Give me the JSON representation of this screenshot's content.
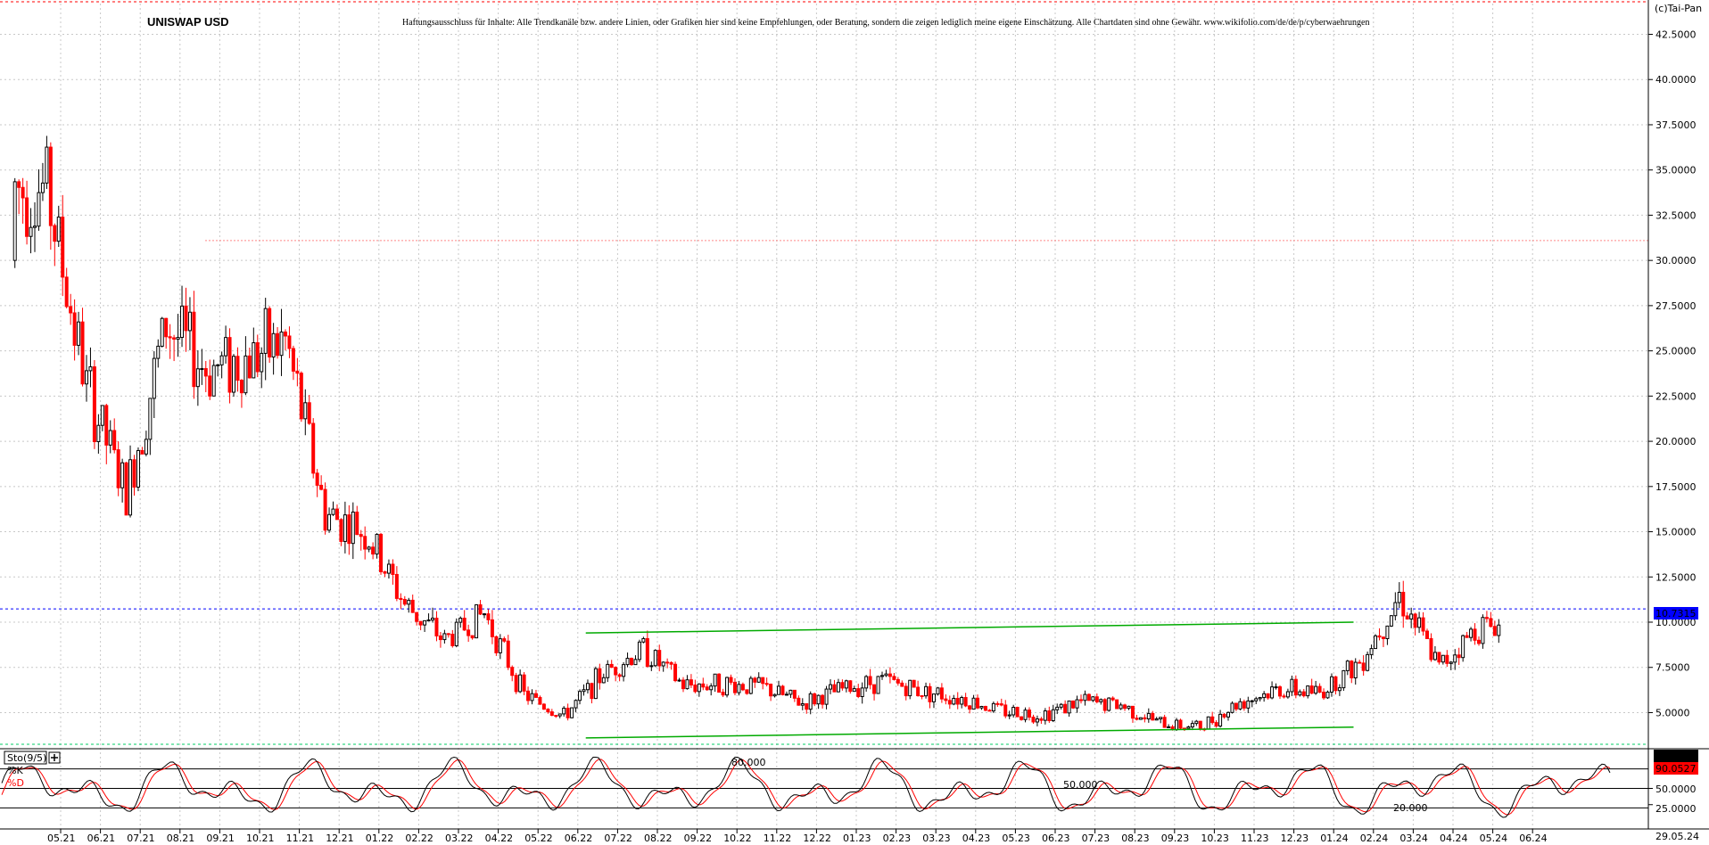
{
  "header": {
    "title": "UNISWAP USD",
    "disclaimer": "Haftungsausschluss für Inhalte: Alle Trendkanäle bzw. andere Linien, oder Grafiken hier sind keine Empfehlungen, oder Beratung, sondern die zeigen lediglich meine eigene Einschätzung. Alle Chartdaten sind ohne Gewähr. www.wikifolio.com/de/de/p/cyberwaehrungen",
    "copyright": "(c)Tai-Pan"
  },
  "colors": {
    "up": "#000000",
    "down": "#ff0000",
    "trend": "#00aa00",
    "last_price_line": "#0000ff",
    "resistance_line": "#ff8888",
    "k_line": "#000000",
    "d_line": "#ff0000"
  },
  "chart_data": [
    {
      "type": "candlestick",
      "title": "UNISWAP USD",
      "ylim": [
        3.2,
        44.2
      ],
      "yticks": [
        5,
        7.5,
        10,
        12.5,
        15,
        17.5,
        20,
        22.5,
        25,
        27.5,
        30,
        32.5,
        35,
        37.5,
        40,
        42.5
      ],
      "ytick_labels": [
        "5.0000",
        "7.5000",
        "10.0000",
        "12.5000",
        "15.0000",
        "17.5000",
        "20.0000",
        "22.5000",
        "25.0000",
        "27.5000",
        "30.0000",
        "32.5000",
        "35.0000",
        "37.5000",
        "40.0000",
        "42.5000"
      ],
      "x_tick_labels": [
        "05.21",
        "06.21",
        "07.21",
        "08.21",
        "09.21",
        "10.21",
        "11.21",
        "12.21",
        "01.22",
        "02.22",
        "03.22",
        "04.22",
        "05.22",
        "06.22",
        "07.22",
        "08.22",
        "09.22",
        "10.22",
        "11.22",
        "12.22",
        "01.23",
        "02.23",
        "03.23",
        "04.23",
        "05.23",
        "06.23",
        "07.23",
        "08.23",
        "09.23",
        "10.23",
        "11.23",
        "12.23",
        "01.24",
        "02.24",
        "03.24",
        "04.24",
        "05.24",
        "06.24"
      ],
      "last_date_label": "29.05.24",
      "last_price": 10.7315,
      "last_price_label": "10.7315",
      "resistance_level": 31.1,
      "grid": true,
      "trend_lines": [
        {
          "from_month": 13.2,
          "from_value": 9.4,
          "to_month": 32.5,
          "to_value": 10.0
        },
        {
          "from_month": 13.2,
          "from_value": 3.6,
          "to_month": 32.5,
          "to_value": 4.2
        }
      ],
      "monthly_closes": [
        {
          "month": "05.21",
          "value": 34.0
        },
        {
          "month": "06.21",
          "value": 23.0
        },
        {
          "month": "07.21",
          "value": 17.0
        },
        {
          "month": "08.21",
          "value": 26.5
        },
        {
          "month": "09.21",
          "value": 24.0
        },
        {
          "month": "10.21",
          "value": 24.5
        },
        {
          "month": "11.21",
          "value": 25.5
        },
        {
          "month": "12.21",
          "value": 16.0
        },
        {
          "month": "01.22",
          "value": 15.0
        },
        {
          "month": "02.22",
          "value": 11.0
        },
        {
          "month": "03.22",
          "value": 9.0
        },
        {
          "month": "04.22",
          "value": 10.5
        },
        {
          "month": "05.22",
          "value": 6.0
        },
        {
          "month": "06.22",
          "value": 4.8
        },
        {
          "month": "07.22",
          "value": 7.2
        },
        {
          "month": "08.22",
          "value": 8.5
        },
        {
          "month": "09.22",
          "value": 6.5
        },
        {
          "month": "10.22",
          "value": 6.6
        },
        {
          "month": "11.22",
          "value": 6.4
        },
        {
          "month": "12.22",
          "value": 5.5
        },
        {
          "month": "01.23",
          "value": 6.3
        },
        {
          "month": "02.23",
          "value": 6.8
        },
        {
          "month": "03.23",
          "value": 6.2
        },
        {
          "month": "04.23",
          "value": 5.8
        },
        {
          "month": "05.23",
          "value": 5.1
        },
        {
          "month": "06.23",
          "value": 4.9
        },
        {
          "month": "07.23",
          "value": 5.6
        },
        {
          "month": "08.23",
          "value": 5.4
        },
        {
          "month": "09.23",
          "value": 4.4
        },
        {
          "month": "10.23",
          "value": 4.2
        },
        {
          "month": "11.23",
          "value": 5.6
        },
        {
          "month": "12.23",
          "value": 6.3
        },
        {
          "month": "01.24",
          "value": 6.1
        },
        {
          "month": "02.24",
          "value": 7.8
        },
        {
          "month": "03.24",
          "value": 11.5
        },
        {
          "month": "04.24",
          "value": 7.5
        },
        {
          "month": "05.24",
          "value": 9.8
        }
      ]
    },
    {
      "type": "line",
      "title": "Sto(9/5)",
      "ylim": [
        0,
        100
      ],
      "levels": [
        20,
        50,
        80
      ],
      "level_labels": [
        "20.000",
        "50.000",
        "80.000"
      ],
      "ytick_labels": [
        "25.0000",
        "50.0000"
      ],
      "series": [
        {
          "name": "%K",
          "last": 90.8543,
          "last_label": "90.8543"
        },
        {
          "name": "%D",
          "last": 90.0527,
          "last_label": "90.0527"
        }
      ]
    }
  ]
}
